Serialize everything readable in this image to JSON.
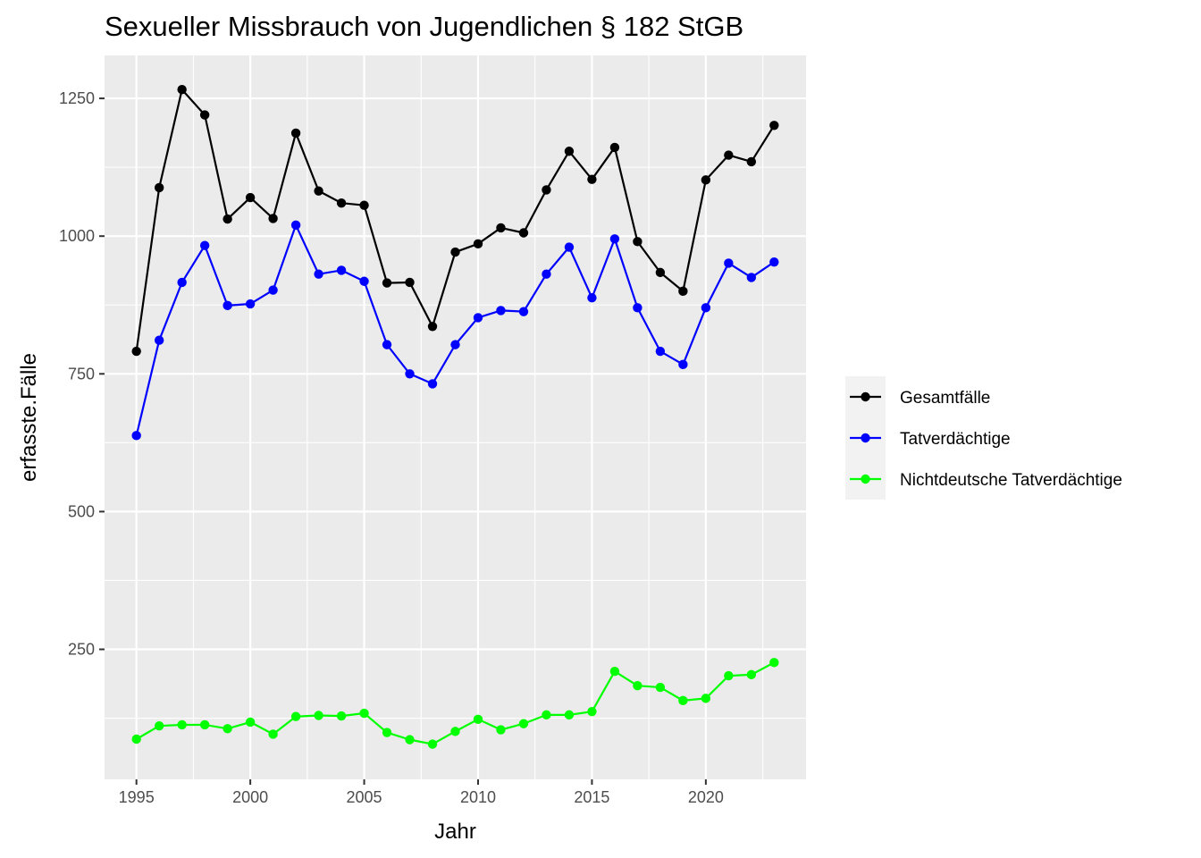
{
  "chart_data": {
    "type": "line",
    "title": "Sexueller Missbrauch von Jugendlichen § 182 StGB",
    "xlabel": "Jahr",
    "ylabel": "erfasste.Fälle",
    "xlim": [
      1993.6,
      2024.4
    ],
    "ylim": [
      14,
      1328
    ],
    "x_ticks": [
      1995,
      2000,
      2005,
      2010,
      2015,
      2020
    ],
    "y_ticks": [
      250,
      500,
      750,
      1000,
      1250
    ],
    "grid": true,
    "legend_position": "right",
    "x": [
      1995,
      1996,
      1997,
      1998,
      1999,
      2000,
      2001,
      2002,
      2003,
      2004,
      2005,
      2006,
      2007,
      2008,
      2009,
      2010,
      2011,
      2012,
      2013,
      2014,
      2015,
      2016,
      2017,
      2018,
      2019,
      2020,
      2021,
      2022,
      2023
    ],
    "series": [
      {
        "name": "Gesamtfälle",
        "color": "#000000",
        "values": [
          791,
          1088,
          1266,
          1220,
          1031,
          1070,
          1032,
          1187,
          1082,
          1060,
          1056,
          915,
          916,
          836,
          971,
          986,
          1015,
          1006,
          1084,
          1154,
          1103,
          1161,
          990,
          934,
          900,
          1102,
          1147,
          1135,
          1201
        ]
      },
      {
        "name": "Tatverdächtige",
        "color": "#0000ff",
        "values": [
          638,
          811,
          916,
          983,
          874,
          877,
          902,
          1020,
          931,
          938,
          918,
          803,
          750,
          732,
          803,
          852,
          865,
          863,
          931,
          980,
          888,
          995,
          870,
          791,
          767,
          870,
          951,
          925,
          953
        ]
      },
      {
        "name": "Nichtdeutsche Tatverdächtige",
        "color": "#00ff00",
        "values": [
          87,
          111,
          113,
          113,
          106,
          118,
          96,
          128,
          130,
          129,
          134,
          99,
          86,
          78,
          101,
          123,
          104,
          115,
          131,
          131,
          137,
          210,
          184,
          181,
          157,
          161,
          202,
          204,
          226
        ]
      }
    ]
  }
}
